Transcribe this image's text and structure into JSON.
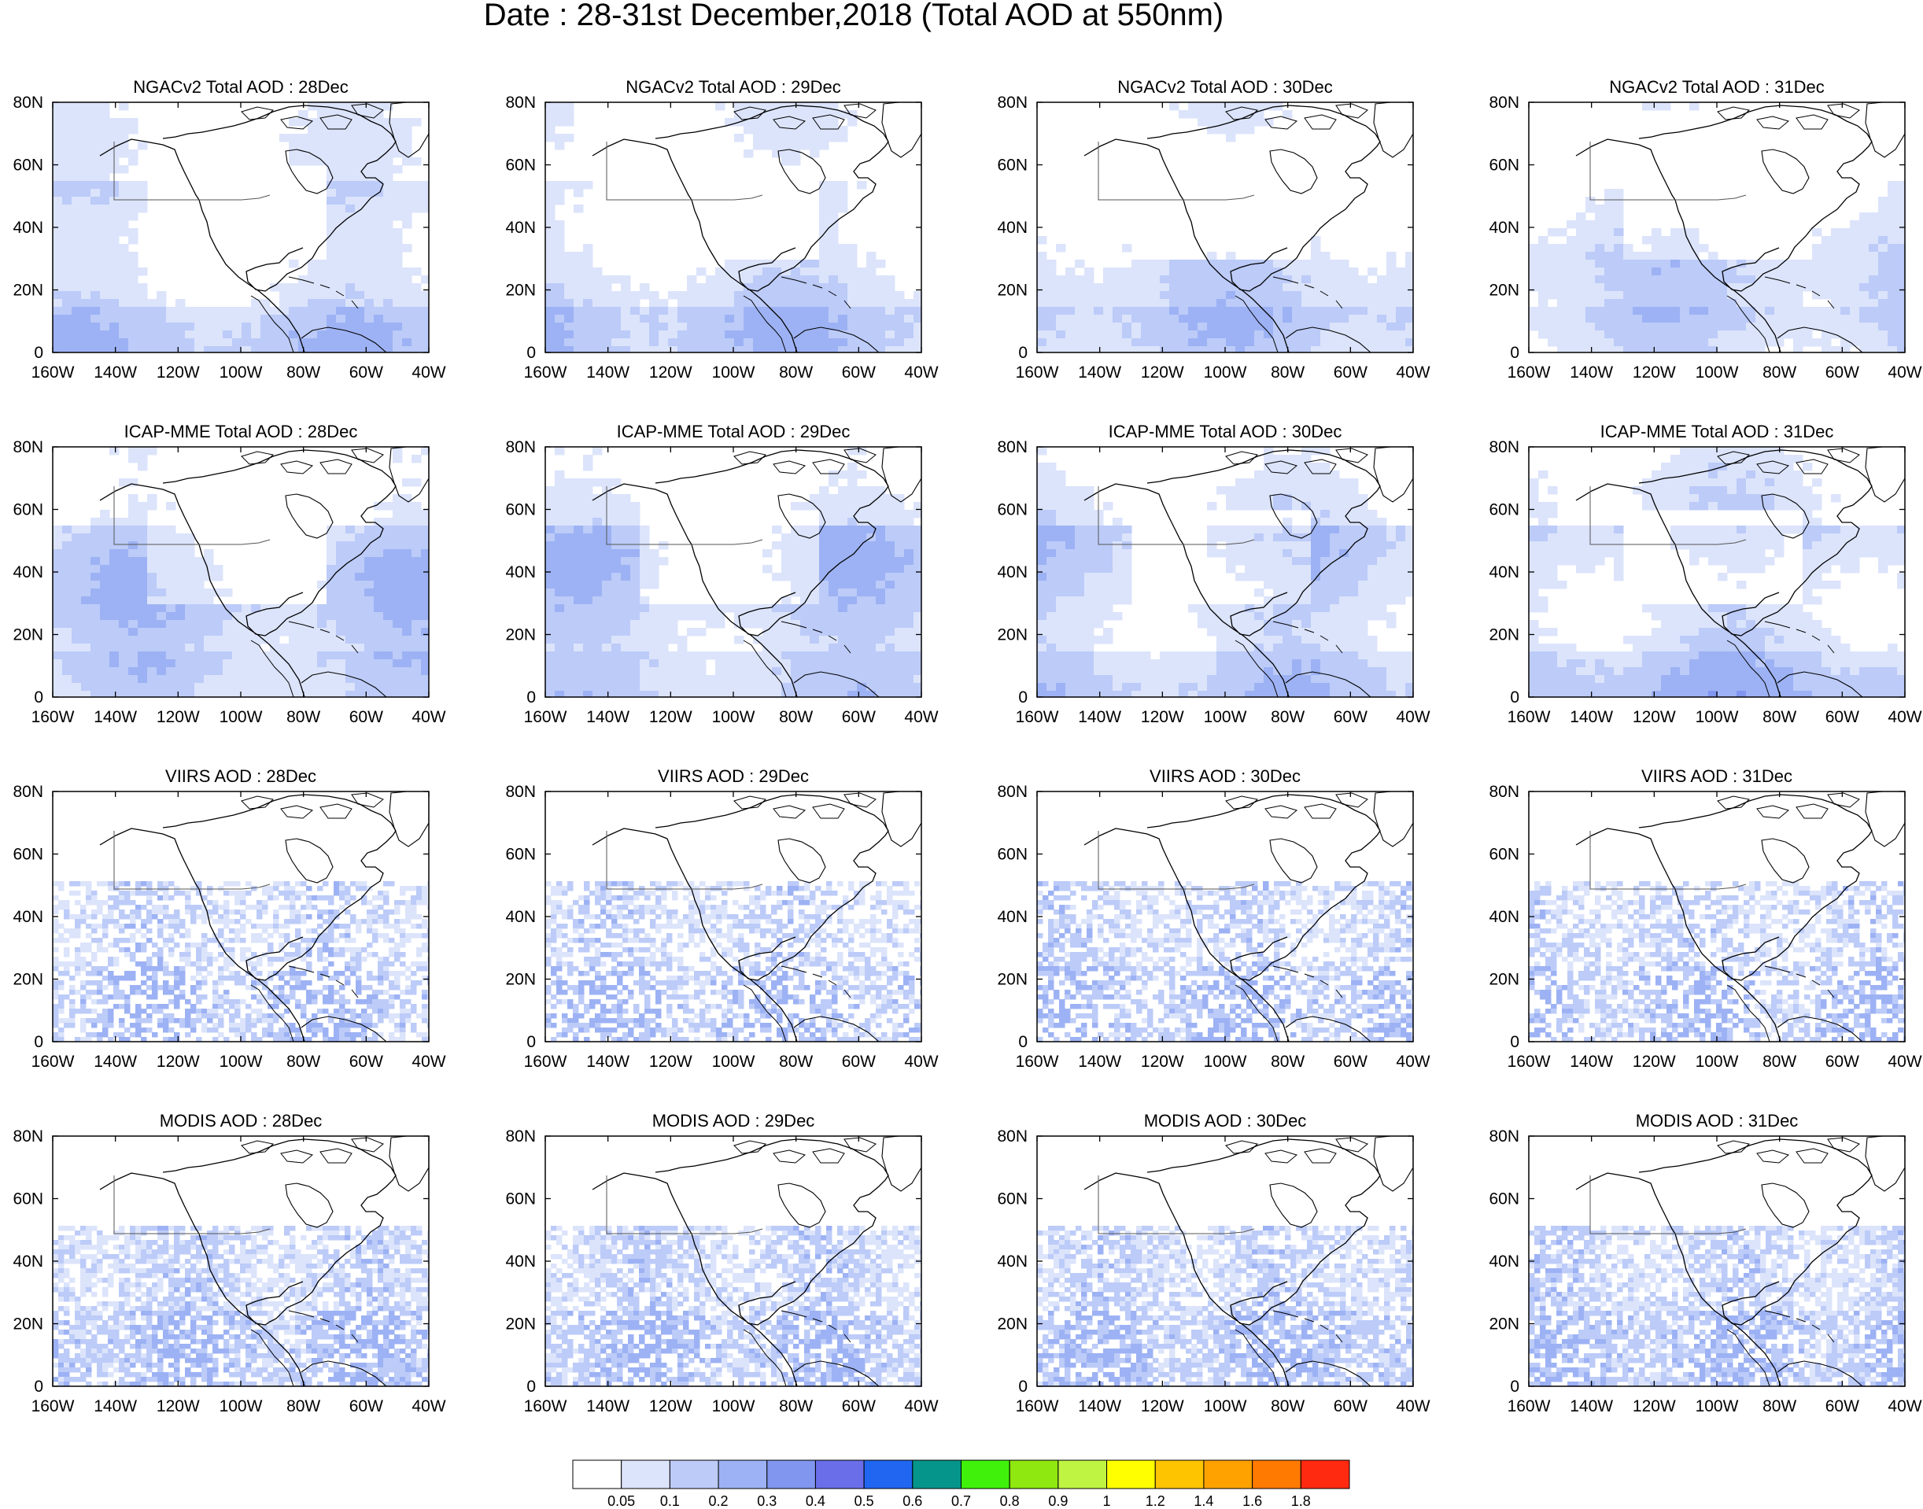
{
  "figure": {
    "title": "Date : 28-31st December,2018 (Total AOD at 550nm)"
  },
  "axes": {
    "x_ticks": [
      "160W",
      "140W",
      "120W",
      "100W",
      "80W",
      "60W",
      "40W"
    ],
    "y_ticks": [
      "80N",
      "60N",
      "40N",
      "20N",
      "0"
    ],
    "lon_range": [
      -160,
      -40
    ],
    "lat_range": [
      0,
      80
    ]
  },
  "panels": [
    {
      "title": "NGACv2 Total AOD : 28Dec",
      "product": "NGACv2",
      "day": "28Dec"
    },
    {
      "title": "NGACv2 Total AOD : 29Dec",
      "product": "NGACv2",
      "day": "29Dec"
    },
    {
      "title": "NGACv2 Total AOD : 30Dec",
      "product": "NGACv2",
      "day": "30Dec"
    },
    {
      "title": "NGACv2 Total AOD : 31Dec",
      "product": "NGACv2",
      "day": "31Dec"
    },
    {
      "title": "ICAP-MME Total AOD : 28Dec",
      "product": "ICAP-MME",
      "day": "28Dec"
    },
    {
      "title": "ICAP-MME Total AOD : 29Dec",
      "product": "ICAP-MME",
      "day": "29Dec"
    },
    {
      "title": "ICAP-MME Total AOD : 30Dec",
      "product": "ICAP-MME",
      "day": "30Dec"
    },
    {
      "title": "ICAP-MME Total AOD : 31Dec",
      "product": "ICAP-MME",
      "day": "31Dec"
    },
    {
      "title": "VIIRS AOD : 28Dec",
      "product": "VIIRS",
      "day": "28Dec"
    },
    {
      "title": "VIIRS AOD : 29Dec",
      "product": "VIIRS",
      "day": "29Dec"
    },
    {
      "title": "VIIRS AOD : 30Dec",
      "product": "VIIRS",
      "day": "30Dec"
    },
    {
      "title": "VIIRS AOD : 31Dec",
      "product": "VIIRS",
      "day": "31Dec"
    },
    {
      "title": "MODIS AOD : 28Dec",
      "product": "MODIS",
      "day": "28Dec"
    },
    {
      "title": "MODIS AOD : 29Dec",
      "product": "MODIS",
      "day": "29Dec"
    },
    {
      "title": "MODIS AOD : 30Dec",
      "product": "MODIS",
      "day": "30Dec"
    },
    {
      "title": "MODIS AOD : 31Dec",
      "product": "MODIS",
      "day": "31Dec"
    }
  ],
  "colorbar": {
    "labels": [
      "0.05",
      "0.1",
      "0.2",
      "0.3",
      "0.4",
      "0.5",
      "0.6",
      "0.7",
      "0.8",
      "0.9",
      "1",
      "1.2",
      "1.4",
      "1.6",
      "1.8"
    ],
    "colors": [
      "#ffffff",
      "#dce4fb",
      "#bccbf8",
      "#9db2f4",
      "#8096ef",
      "#6a6ee8",
      "#2166f0",
      "#05958a",
      "#40f20b",
      "#8fe80f",
      "#c0f442",
      "#ffff00",
      "#ffc400",
      "#ffa200",
      "#ff7a00",
      "#ff2a10"
    ]
  },
  "colors": {
    "land_line": "#000000",
    "border_line": "#555555"
  }
}
